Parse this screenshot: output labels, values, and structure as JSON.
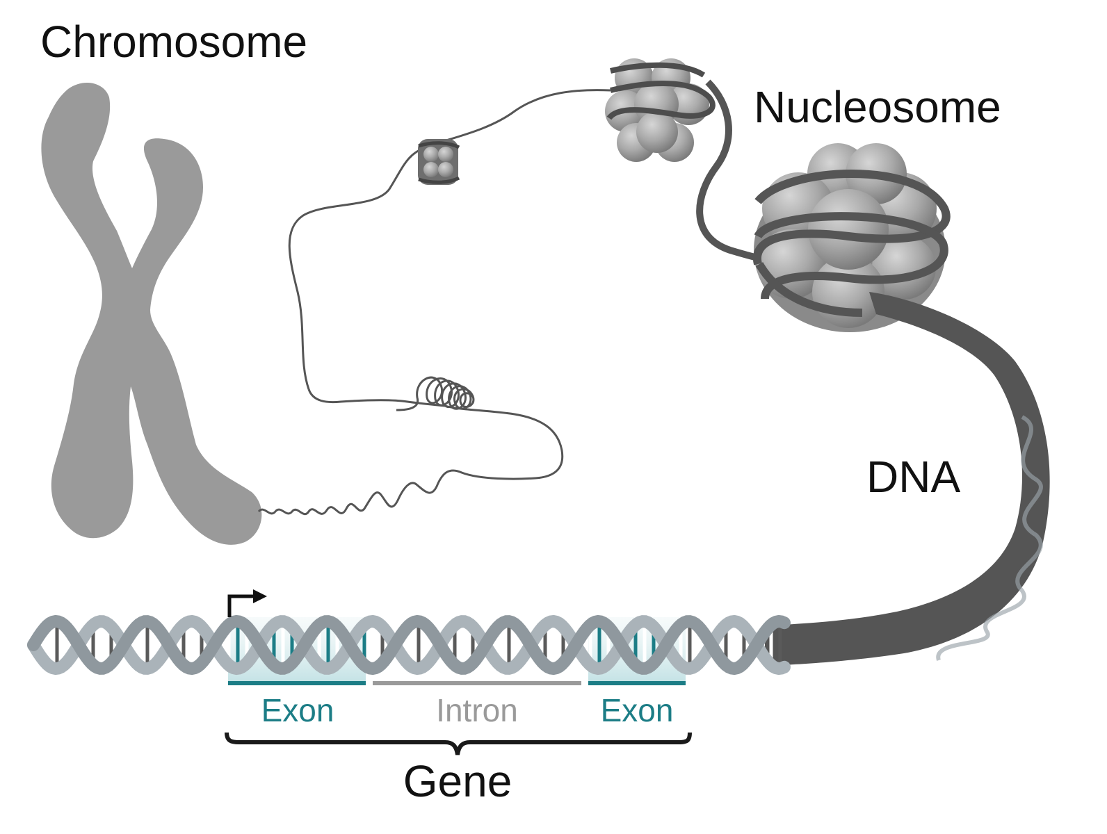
{
  "labels": {
    "chromosome": "Chromosome",
    "nucleosome": "Nucleosome",
    "dna": "DNA",
    "exon_1": "Exon",
    "intron": "Intron",
    "exon_2": "Exon",
    "gene": "Gene"
  },
  "colors": {
    "background": "#ffffff",
    "chromosome": "#9a9a9a",
    "chromatin_fiber": "#555555",
    "histone": "#a9a9a9",
    "dna_backbone": "#a9b2b8",
    "dna_base_dark": "#5a5a5a",
    "exon": "#1c7d86",
    "exon_fill": "#cfe6e8",
    "intron": "#9a9a9a",
    "gene_bracket": "#1a1a1a",
    "text": "#111111"
  },
  "icons": {
    "tss": "transcription-start-arrow-icon"
  }
}
